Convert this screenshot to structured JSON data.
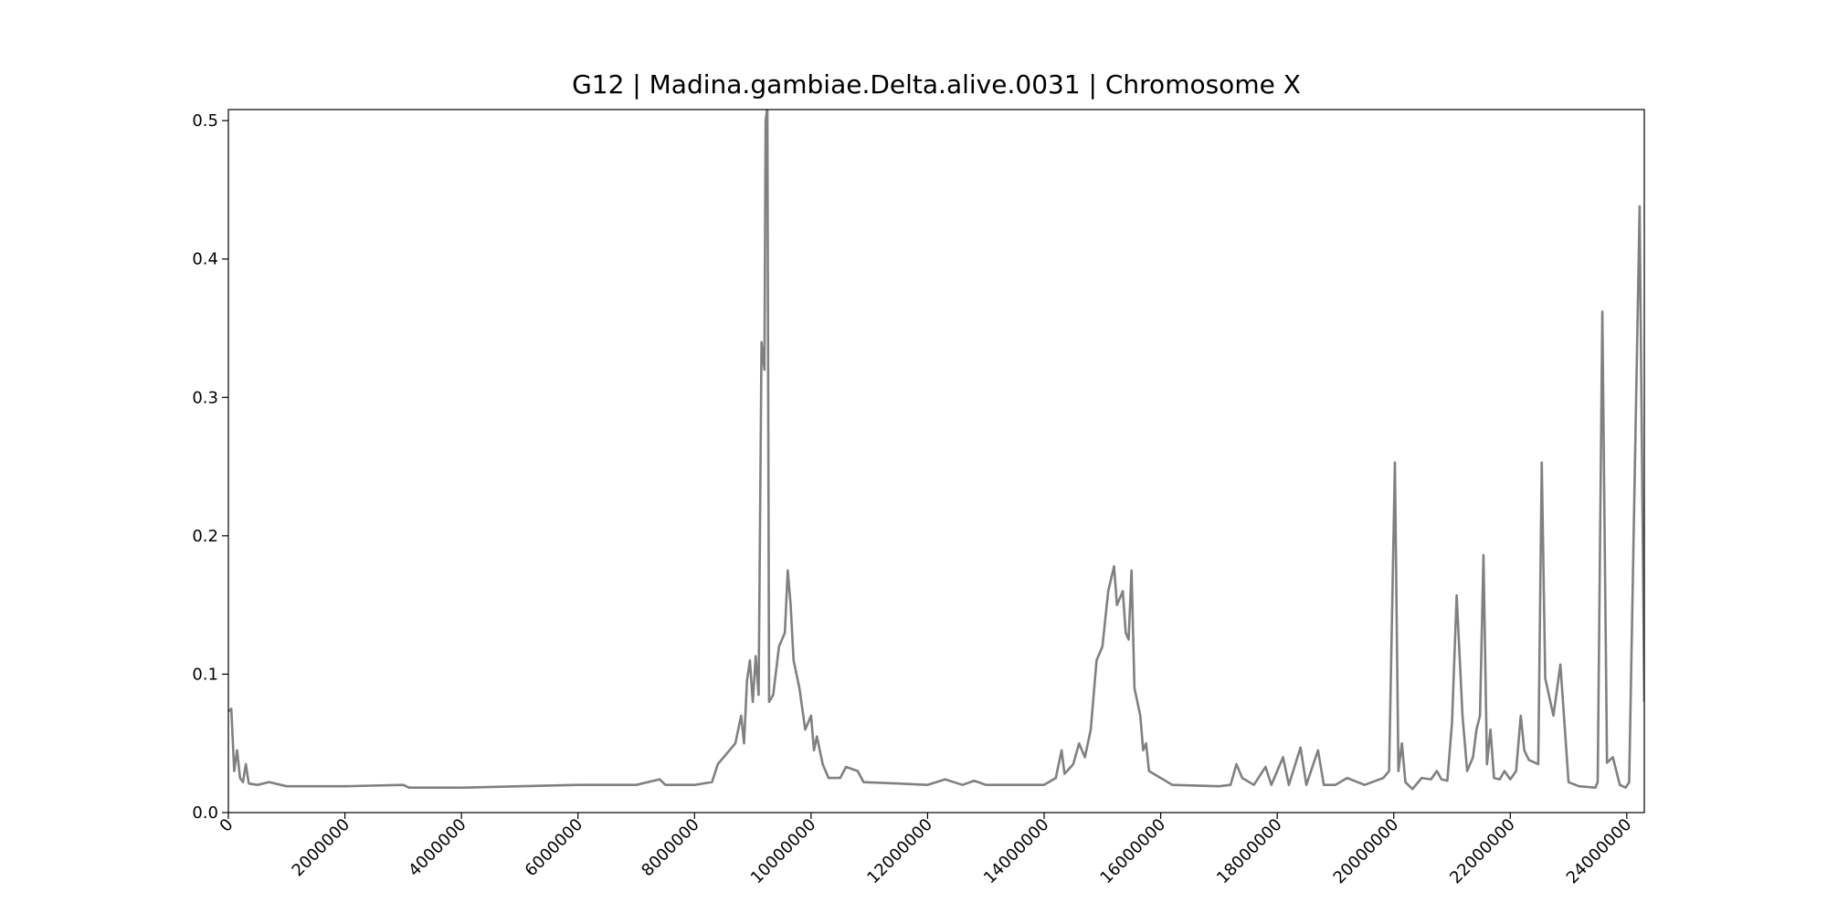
{
  "chart_data": {
    "type": "line",
    "title": "G12 | Madina.gambiae.Delta.alive.0031 | Chromosome X",
    "color": "#808080",
    "xlim": [
      0,
      24300000
    ],
    "ylim": [
      0,
      0.508
    ],
    "xticks": [
      0,
      2000000,
      4000000,
      6000000,
      8000000,
      10000000,
      12000000,
      14000000,
      16000000,
      18000000,
      20000000,
      22000000,
      24000000
    ],
    "yticks": [
      {
        "value": 0,
        "label": "0.0"
      },
      0.1,
      0.2,
      0.3,
      0.4,
      0.5
    ],
    "x": [
      0,
      50000,
      100000,
      150000,
      200000,
      250000,
      300000,
      350000,
      500000,
      700000,
      1000000,
      2000000,
      3000000,
      3100000,
      4000000,
      5000000,
      6000000,
      7000000,
      7400000,
      7500000,
      8000000,
      8300000,
      8400000,
      8500000,
      8600000,
      8700000,
      8800000,
      8850000,
      8900000,
      8950000,
      9000000,
      9050000,
      9100000,
      9150000,
      9200000,
      9220000,
      9250000,
      9280000,
      9350000,
      9450000,
      9550000,
      9600000,
      9650000,
      9700000,
      9800000,
      9900000,
      10000000,
      10050000,
      10100000,
      10200000,
      10300000,
      10500000,
      10600000,
      10800000,
      10900000,
      11500000,
      12000000,
      12300000,
      12600000,
      12800000,
      13000000,
      14000000,
      14200000,
      14300000,
      14350000,
      14500000,
      14600000,
      14700000,
      14800000,
      14900000,
      15000000,
      15100000,
      15200000,
      15250000,
      15350000,
      15400000,
      15450000,
      15500000,
      15550000,
      15650000,
      15700000,
      15750000,
      15800000,
      16000000,
      16200000,
      17000000,
      17200000,
      17300000,
      17400000,
      17600000,
      17800000,
      17900000,
      18100000,
      18200000,
      18400000,
      18500000,
      18700000,
      18800000,
      19000000,
      19200000,
      19500000,
      19820000,
      19920000,
      20020000,
      20080000,
      20140000,
      20200000,
      20320000,
      20480000,
      20640000,
      20740000,
      20820000,
      20920000,
      21000000,
      21080000,
      21180000,
      21260000,
      21360000,
      21420000,
      21480000,
      21540000,
      21600000,
      21660000,
      21720000,
      21820000,
      21900000,
      22000000,
      22100000,
      22180000,
      22240000,
      22320000,
      22480000,
      22540000,
      22600000,
      22740000,
      22860000,
      23000000,
      23180000,
      23460000,
      23500000,
      23580000,
      23660000,
      23760000,
      23880000,
      23980000,
      24040000,
      24220000,
      24300000
    ],
    "values": [
      0.073,
      0.075,
      0.03,
      0.045,
      0.025,
      0.022,
      0.035,
      0.021,
      0.02,
      0.022,
      0.019,
      0.019,
      0.02,
      0.018,
      0.018,
      0.019,
      0.02,
      0.02,
      0.024,
      0.02,
      0.02,
      0.022,
      0.035,
      0.04,
      0.045,
      0.05,
      0.07,
      0.05,
      0.095,
      0.11,
      0.08,
      0.113,
      0.085,
      0.34,
      0.32,
      0.5,
      0.51,
      0.08,
      0.085,
      0.12,
      0.13,
      0.175,
      0.15,
      0.11,
      0.09,
      0.06,
      0.07,
      0.045,
      0.055,
      0.035,
      0.025,
      0.025,
      0.033,
      0.03,
      0.022,
      0.021,
      0.02,
      0.024,
      0.02,
      0.023,
      0.02,
      0.02,
      0.025,
      0.045,
      0.028,
      0.035,
      0.05,
      0.04,
      0.06,
      0.11,
      0.12,
      0.16,
      0.178,
      0.15,
      0.16,
      0.13,
      0.125,
      0.175,
      0.09,
      0.07,
      0.045,
      0.05,
      0.03,
      0.025,
      0.02,
      0.019,
      0.02,
      0.035,
      0.025,
      0.02,
      0.033,
      0.02,
      0.04,
      0.02,
      0.047,
      0.02,
      0.045,
      0.02,
      0.02,
      0.025,
      0.02,
      0.025,
      0.03,
      0.253,
      0.03,
      0.05,
      0.022,
      0.017,
      0.025,
      0.024,
      0.03,
      0.024,
      0.023,
      0.065,
      0.157,
      0.07,
      0.03,
      0.04,
      0.06,
      0.07,
      0.186,
      0.035,
      0.06,
      0.025,
      0.024,
      0.03,
      0.024,
      0.03,
      0.07,
      0.045,
      0.038,
      0.035,
      0.253,
      0.097,
      0.07,
      0.107,
      0.022,
      0.019,
      0.018,
      0.022,
      0.362,
      0.036,
      0.04,
      0.02,
      0.018,
      0.022,
      0.438,
      0.08
    ]
  }
}
